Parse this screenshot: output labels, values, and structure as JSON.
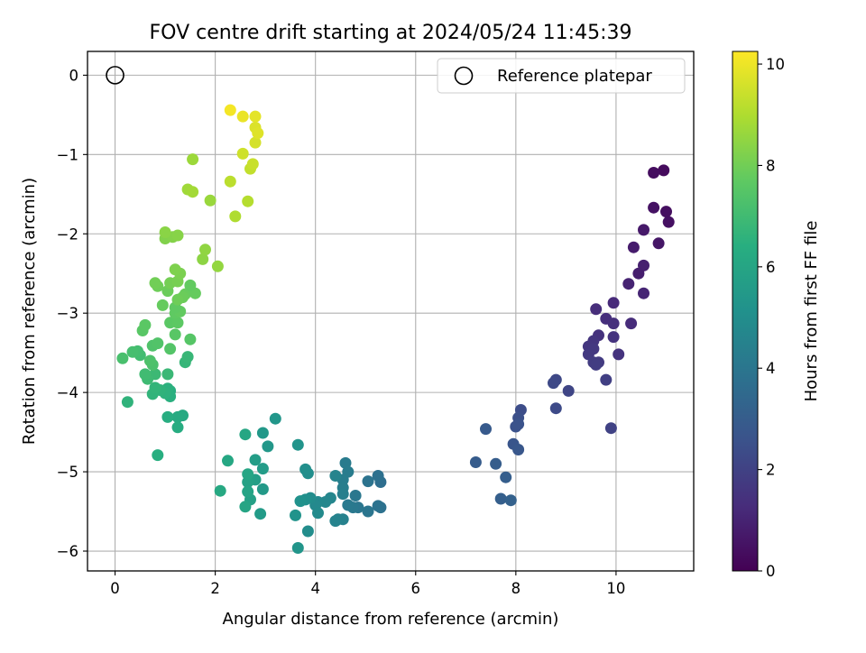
{
  "chart_data": {
    "type": "scatter",
    "title": "FOV centre drift starting at 2024/05/24 11:45:39",
    "xlabel": "Angular distance from reference (arcmin)",
    "ylabel": "Rotation from reference (arcmin)",
    "xlim": [
      -0.55,
      11.55
    ],
    "ylim": [
      -6.25,
      0.3
    ],
    "xticks": [
      0,
      2,
      4,
      6,
      8,
      10
    ],
    "yticks": [
      0,
      -1,
      -2,
      -3,
      -4,
      -5,
      -6
    ],
    "grid": true,
    "legend": {
      "placement": "top-right",
      "entries": [
        "Reference platepar"
      ]
    },
    "reference_point": {
      "x": 0,
      "y": 0,
      "marker": "open-circle"
    },
    "colorbar": {
      "label": "Hours from first FF file",
      "min": 0,
      "max": 10.25,
      "ticks": [
        0,
        2,
        4,
        6,
        8,
        10
      ],
      "colormap": "viridis"
    },
    "series": [
      {
        "points": [
          [
            10.95,
            -1.2,
            0.3
          ],
          [
            10.75,
            -1.23,
            0.35
          ],
          [
            11.05,
            -1.85,
            0.45
          ],
          [
            10.75,
            -1.67,
            0.5
          ],
          [
            11.0,
            -1.72,
            0.4
          ],
          [
            10.55,
            -1.95,
            0.7
          ],
          [
            10.85,
            -2.12,
            0.6
          ],
          [
            10.35,
            -2.17,
            0.8
          ],
          [
            10.55,
            -2.4,
            0.9
          ],
          [
            10.45,
            -2.5,
            0.85
          ],
          [
            10.25,
            -2.63,
            1.0
          ],
          [
            10.55,
            -2.75,
            1.05
          ],
          [
            9.95,
            -2.87,
            1.2
          ],
          [
            9.6,
            -2.95,
            1.3
          ],
          [
            10.3,
            -3.13,
            1.25
          ],
          [
            9.8,
            -3.07,
            1.35
          ],
          [
            9.95,
            -3.13,
            1.4
          ],
          [
            9.65,
            -3.28,
            1.45
          ],
          [
            9.95,
            -3.3,
            1.5
          ],
          [
            9.55,
            -3.35,
            1.55
          ],
          [
            9.45,
            -3.42,
            1.6
          ],
          [
            9.55,
            -3.45,
            1.65
          ],
          [
            10.05,
            -3.52,
            1.5
          ],
          [
            9.45,
            -3.52,
            1.7
          ],
          [
            9.55,
            -3.62,
            1.8
          ],
          [
            9.65,
            -3.62,
            1.75
          ],
          [
            9.6,
            -3.65,
            1.85
          ],
          [
            9.8,
            -3.84,
            1.9
          ],
          [
            9.9,
            -4.45,
            2.0
          ],
          [
            9.05,
            -3.98,
            2.1
          ],
          [
            8.8,
            -3.84,
            2.2
          ],
          [
            8.75,
            -3.88,
            2.25
          ],
          [
            8.1,
            -4.22,
            2.4
          ],
          [
            8.8,
            -4.2,
            2.3
          ],
          [
            8.05,
            -4.32,
            2.5
          ],
          [
            8.0,
            -4.43,
            2.55
          ],
          [
            8.05,
            -4.4,
            2.6
          ],
          [
            7.95,
            -4.65,
            2.7
          ],
          [
            8.05,
            -4.72,
            2.75
          ],
          [
            7.4,
            -4.46,
            2.9
          ],
          [
            7.2,
            -4.88,
            2.95
          ],
          [
            7.6,
            -4.9,
            3.0
          ],
          [
            7.8,
            -5.07,
            3.05
          ],
          [
            7.7,
            -5.34,
            3.1
          ],
          [
            7.9,
            -5.36,
            3.15
          ],
          [
            5.3,
            -5.13,
            3.7
          ],
          [
            5.25,
            -5.05,
            3.75
          ],
          [
            5.3,
            -5.45,
            3.8
          ],
          [
            5.25,
            -5.43,
            3.85
          ],
          [
            5.05,
            -5.12,
            3.9
          ],
          [
            5.05,
            -5.5,
            3.95
          ],
          [
            4.85,
            -5.45,
            4.0
          ],
          [
            4.8,
            -5.3,
            4.05
          ],
          [
            4.75,
            -5.45,
            4.1
          ],
          [
            4.65,
            -5.42,
            4.15
          ],
          [
            4.6,
            -4.89,
            4.2
          ],
          [
            4.65,
            -5.0,
            4.25
          ],
          [
            4.55,
            -5.1,
            4.3
          ],
          [
            4.55,
            -5.2,
            4.35
          ],
          [
            4.55,
            -5.28,
            4.4
          ],
          [
            4.55,
            -5.6,
            4.45
          ],
          [
            4.45,
            -5.6,
            4.5
          ],
          [
            4.4,
            -5.62,
            4.55
          ],
          [
            4.4,
            -5.05,
            4.6
          ],
          [
            4.3,
            -5.33,
            4.65
          ],
          [
            4.2,
            -5.38,
            4.7
          ],
          [
            4.05,
            -5.38,
            4.75
          ],
          [
            4.0,
            -5.42,
            4.8
          ],
          [
            4.05,
            -5.52,
            4.85
          ],
          [
            3.9,
            -5.33,
            4.9
          ],
          [
            3.85,
            -5.75,
            4.95
          ],
          [
            3.85,
            -5.02,
            5.0
          ],
          [
            3.8,
            -4.97,
            5.05
          ],
          [
            3.8,
            -5.35,
            5.1
          ],
          [
            3.7,
            -5.37,
            5.15
          ],
          [
            3.6,
            -5.55,
            5.2
          ],
          [
            3.65,
            -4.66,
            5.25
          ],
          [
            3.65,
            -5.96,
            5.3
          ],
          [
            3.2,
            -4.33,
            5.35
          ],
          [
            3.05,
            -4.68,
            5.4
          ],
          [
            2.95,
            -4.51,
            5.45
          ],
          [
            2.95,
            -5.22,
            5.5
          ],
          [
            2.9,
            -5.53,
            5.55
          ],
          [
            2.95,
            -4.96,
            5.6
          ],
          [
            2.8,
            -4.85,
            5.65
          ],
          [
            2.8,
            -5.1,
            5.7
          ],
          [
            2.7,
            -5.1,
            5.75
          ],
          [
            2.7,
            -5.35,
            5.8
          ],
          [
            2.65,
            -5.13,
            5.85
          ],
          [
            2.65,
            -5.25,
            5.9
          ],
          [
            2.6,
            -5.44,
            5.95
          ],
          [
            2.65,
            -5.03,
            6.0
          ],
          [
            2.6,
            -4.53,
            6.05
          ],
          [
            2.25,
            -4.86,
            6.1
          ],
          [
            2.1,
            -5.24,
            6.15
          ],
          [
            1.35,
            -4.29,
            6.2
          ],
          [
            1.25,
            -4.31,
            6.25
          ],
          [
            1.25,
            -4.44,
            6.3
          ],
          [
            1.05,
            -4.31,
            6.35
          ],
          [
            1.1,
            -3.98,
            6.4
          ],
          [
            1.1,
            -4.05,
            6.45
          ],
          [
            1.05,
            -3.95,
            6.5
          ],
          [
            1.0,
            -4.01,
            6.55
          ],
          [
            0.9,
            -3.97,
            6.6
          ],
          [
            0.75,
            -4.02,
            6.65
          ],
          [
            0.8,
            -3.94,
            6.7
          ],
          [
            0.85,
            -4.79,
            6.4
          ],
          [
            0.25,
            -4.12,
            6.6
          ],
          [
            1.4,
            -3.62,
            6.75
          ],
          [
            1.45,
            -3.55,
            6.8
          ],
          [
            1.05,
            -3.77,
            6.85
          ],
          [
            0.8,
            -3.77,
            6.9
          ],
          [
            0.65,
            -3.83,
            6.95
          ],
          [
            0.6,
            -3.77,
            7.0
          ],
          [
            0.5,
            -3.53,
            7.05
          ],
          [
            0.45,
            -3.48,
            7.1
          ],
          [
            0.35,
            -3.49,
            7.15
          ],
          [
            0.15,
            -3.57,
            7.2
          ],
          [
            0.75,
            -3.65,
            7.25
          ],
          [
            0.7,
            -3.6,
            7.3
          ],
          [
            0.75,
            -3.41,
            7.35
          ],
          [
            0.85,
            -3.38,
            7.4
          ],
          [
            1.1,
            -3.45,
            7.45
          ],
          [
            1.5,
            -3.33,
            7.5
          ],
          [
            0.55,
            -3.22,
            7.55
          ],
          [
            0.6,
            -3.15,
            7.6
          ],
          [
            1.2,
            -3.27,
            7.55
          ],
          [
            1.1,
            -3.12,
            7.6
          ],
          [
            1.25,
            -3.12,
            7.65
          ],
          [
            1.2,
            -3.0,
            7.7
          ],
          [
            1.3,
            -2.98,
            7.75
          ],
          [
            1.2,
            -2.93,
            7.7
          ],
          [
            0.95,
            -2.9,
            7.8
          ],
          [
            1.4,
            -2.76,
            7.85
          ],
          [
            1.35,
            -2.8,
            7.9
          ],
          [
            1.25,
            -2.83,
            7.95
          ],
          [
            1.6,
            -2.75,
            7.8
          ],
          [
            1.5,
            -2.65,
            7.75
          ],
          [
            1.05,
            -2.72,
            7.9
          ],
          [
            0.85,
            -2.66,
            7.95
          ],
          [
            0.8,
            -2.62,
            8.0
          ],
          [
            1.1,
            -2.62,
            8.05
          ],
          [
            1.25,
            -2.6,
            8.1
          ],
          [
            1.3,
            -2.5,
            8.15
          ],
          [
            1.2,
            -2.45,
            8.2
          ],
          [
            1.0,
            -2.06,
            8.25
          ],
          [
            1.15,
            -2.04,
            8.3
          ],
          [
            1.25,
            -2.02,
            8.35
          ],
          [
            1.0,
            -1.98,
            8.4
          ],
          [
            1.75,
            -2.32,
            8.45
          ],
          [
            1.8,
            -2.2,
            8.5
          ],
          [
            2.05,
            -2.41,
            8.55
          ],
          [
            1.9,
            -1.58,
            8.65
          ],
          [
            1.55,
            -1.06,
            8.7
          ],
          [
            1.45,
            -1.44,
            8.75
          ],
          [
            1.55,
            -1.47,
            8.8
          ],
          [
            2.4,
            -1.78,
            9.0
          ],
          [
            2.65,
            -1.59,
            9.1
          ],
          [
            2.3,
            -1.34,
            9.2
          ],
          [
            2.7,
            -1.18,
            9.3
          ],
          [
            2.75,
            -1.12,
            9.4
          ],
          [
            2.55,
            -0.99,
            9.5
          ],
          [
            2.8,
            -0.85,
            9.6
          ],
          [
            2.8,
            -0.66,
            9.7
          ],
          [
            2.85,
            -0.73,
            9.75
          ],
          [
            2.8,
            -0.52,
            9.85
          ],
          [
            2.55,
            -0.52,
            9.95
          ],
          [
            2.3,
            -0.44,
            10.1
          ]
        ]
      }
    ]
  }
}
